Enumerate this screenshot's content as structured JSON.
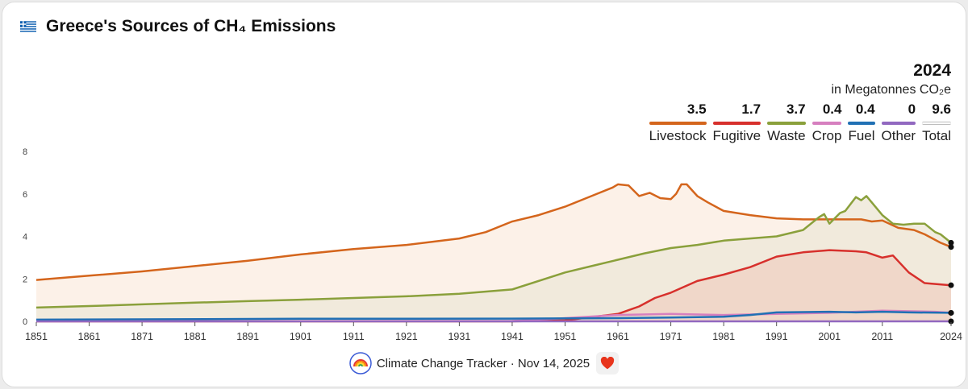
{
  "header": {
    "title": "Greece's Sources of CH₄ Emissions",
    "year": "2024",
    "unit": "in Megatonnes CO₂e"
  },
  "legend": [
    {
      "name": "Livestock",
      "value": "3.5",
      "color": "#d4651c"
    },
    {
      "name": "Fugitive",
      "value": "1.7",
      "color": "#d7302c"
    },
    {
      "name": "Waste",
      "value": "3.7",
      "color": "#8aa03b"
    },
    {
      "name": "Crop",
      "value": "0.4",
      "color": "#d67fbf"
    },
    {
      "name": "Fuel",
      "value": "0.4",
      "color": "#2070b4"
    },
    {
      "name": "Other",
      "value": "0",
      "color": "#9168c0"
    },
    {
      "name": "Total",
      "value": "9.6",
      "color": "#bdbdbd"
    }
  ],
  "footer": {
    "credit": "Climate Change Tracker · Nov 14, 2025"
  },
  "icons": {
    "flag": "greece-flag-icon",
    "logo": "climate-change-tracker-logo",
    "heart": "heart-icon"
  },
  "chart_data": {
    "type": "area",
    "xlim": [
      1851,
      2024
    ],
    "ylim": [
      0,
      8
    ],
    "yticks": [
      0,
      2,
      4,
      6,
      8
    ],
    "xticks": [
      1851,
      1861,
      1871,
      1881,
      1891,
      1901,
      1911,
      1921,
      1931,
      1941,
      1951,
      1961,
      1971,
      1981,
      1991,
      2001,
      2011,
      2024
    ],
    "grid": false,
    "series": [
      {
        "name": "Livestock",
        "color": "#d4651c",
        "fill": "#fbeee4",
        "x": [
          1851,
          1861,
          1871,
          1881,
          1891,
          1901,
          1911,
          1921,
          1931,
          1936,
          1941,
          1946,
          1951,
          1956,
          1960,
          1961,
          1963,
          1965,
          1967,
          1969,
          1971,
          1972,
          1973,
          1974,
          1976,
          1978,
          1981,
          1986,
          1991,
          1996,
          2001,
          2003,
          2005,
          2007,
          2009,
          2011,
          2014,
          2017,
          2019,
          2022,
          2024
        ],
        "y": [
          1.95,
          2.15,
          2.35,
          2.6,
          2.85,
          3.15,
          3.4,
          3.6,
          3.9,
          4.2,
          4.7,
          5.0,
          5.4,
          5.9,
          6.3,
          6.45,
          6.4,
          5.9,
          6.05,
          5.8,
          5.75,
          6.0,
          6.45,
          6.45,
          5.9,
          5.6,
          5.2,
          5.0,
          4.85,
          4.8,
          4.8,
          4.8,
          4.8,
          4.8,
          4.7,
          4.75,
          4.4,
          4.3,
          4.1,
          3.7,
          3.5
        ]
      },
      {
        "name": "Waste",
        "color": "#8aa03b",
        "fill": "#eee9d9",
        "x": [
          1851,
          1861,
          1871,
          1881,
          1891,
          1901,
          1911,
          1921,
          1931,
          1941,
          1951,
          1956,
          1961,
          1966,
          1971,
          1976,
          1981,
          1986,
          1991,
          1996,
          1999,
          2000,
          2001,
          2003,
          2004,
          2006,
          2007,
          2008,
          2009,
          2011,
          2013,
          2015,
          2017,
          2019,
          2021,
          2022,
          2024
        ],
        "y": [
          0.65,
          0.72,
          0.8,
          0.88,
          0.95,
          1.02,
          1.1,
          1.18,
          1.3,
          1.5,
          2.3,
          2.6,
          2.9,
          3.2,
          3.45,
          3.6,
          3.8,
          3.9,
          4.0,
          4.3,
          4.9,
          5.05,
          4.6,
          5.1,
          5.2,
          5.85,
          5.7,
          5.9,
          5.6,
          5.0,
          4.6,
          4.55,
          4.6,
          4.6,
          4.2,
          4.1,
          3.7
        ]
      },
      {
        "name": "Fugitive",
        "color": "#d7302c",
        "fill": "#f0d3c6",
        "x": [
          1851,
          1941,
          1951,
          1956,
          1961,
          1965,
          1968,
          1971,
          1976,
          1981,
          1986,
          1991,
          1996,
          2001,
          2006,
          2008,
          2011,
          2013,
          2016,
          2019,
          2024
        ],
        "y": [
          0,
          0,
          0.05,
          0.2,
          0.35,
          0.7,
          1.1,
          1.35,
          1.9,
          2.2,
          2.55,
          3.05,
          3.25,
          3.35,
          3.3,
          3.25,
          3.0,
          3.1,
          2.3,
          1.8,
          1.7
        ]
      },
      {
        "name": "Crop",
        "color": "#d67fbf",
        "fill": "none",
        "x": [
          1851,
          1941,
          1951,
          1961,
          1971,
          1981,
          1991,
          2001,
          2011,
          2021,
          2024
        ],
        "y": [
          0,
          0.02,
          0.15,
          0.3,
          0.35,
          0.3,
          0.35,
          0.4,
          0.5,
          0.45,
          0.4
        ]
      },
      {
        "name": "Fuel",
        "color": "#2070b4",
        "fill": "none",
        "x": [
          1851,
          1901,
          1941,
          1961,
          1971,
          1981,
          1986,
          1991,
          2001,
          2006,
          2011,
          2016,
          2024
        ],
        "y": [
          0.08,
          0.12,
          0.13,
          0.15,
          0.18,
          0.22,
          0.3,
          0.42,
          0.45,
          0.42,
          0.45,
          0.42,
          0.4
        ]
      },
      {
        "name": "Other",
        "color": "#9168c0",
        "fill": "none",
        "x": [
          1851,
          2024
        ],
        "y": [
          0,
          0
        ]
      }
    ]
  }
}
